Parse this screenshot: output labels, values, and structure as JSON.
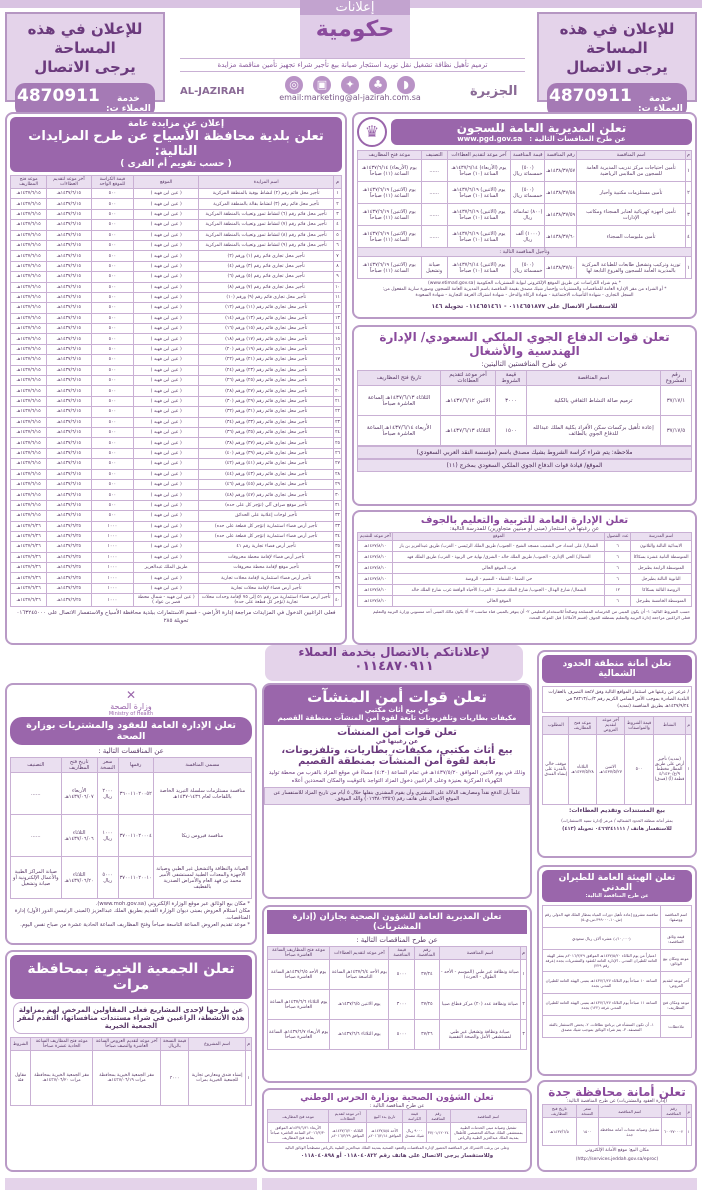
{
  "header": {
    "ad_line1": "للإعلان في هذه المساحة",
    "ad_line2": "يرجى الاتصال",
    "ad_phone_label": "خدمة العملاء ت:",
    "ad_phone": "4870911",
    "logo_top": "إعلانات",
    "logo_main": "حكومية",
    "tagline": "ترميم تأهيل نظافة تشغيل نقل توريد استئجار صيانة بيع تأجير شراء تجهيز تأمين مناقصة مزايدة",
    "email": "email:marketing@al-jazirah.com.sa",
    "brand_en": "AL-JAZIRAH",
    "brand_ar": "الجزيرة"
  },
  "asyah": {
    "kicker": "إعلان عن مزايدة عامة",
    "title": "تعلن بلدية محافظة الأسياح عن طرح المزايدات التالية:",
    "subtitle": "( حسب تقويم أم القرى )",
    "headers": [
      "م",
      "اسم المزايدة",
      "الموقع",
      "قيمة الكراسة للموقع الواحد",
      "آخر موعد لتقديم العطاءات",
      "موعد فتح المظاريف"
    ],
    "rows": [
      [
        "١",
        "تأجير محل قائم رقم (٢) لنشاط بوفية بالمنطقة المركزية",
        "( عين ابن فهيد )",
        "٥٠٠",
        "١٤٣٧/٦/١٥هـ",
        "١٤٣٧/٦/١٥هـ"
      ],
      [
        "٢",
        "تأجير محل قائم رقم (٣) لنشاط بقالة بالمنطقة المركزية",
        "( عين ابن فهيد )",
        "٥٠٠",
        "١٤٣٧/٦/١٥هـ",
        "١٤٣٧/٦/١٥هـ"
      ],
      [
        "٣",
        "تأجير محل قائم رقم (٦) لنشاط تمور وتعبيات بالمنطقة المركزية",
        "( عين ابن فهيد )",
        "٥٠٠",
        "١٤٣٧/٦/١٥هـ",
        "١٤٣٧/٦/١٥هـ"
      ],
      [
        "٤",
        "تأجير محل قائم رقم (٧) لنشاط تمور وتعبيات بالمنطقة المركزية",
        "( عين ابن فهيد )",
        "٥٠٠",
        "١٤٣٧/٦/١٥هـ",
        "١٤٣٧/٦/١٥هـ"
      ],
      [
        "٥",
        "تأجير محل قائم رقم (٨) لنشاط تمور وتعبيات بالمنطقة المركزية",
        "( عين ابن فهيد )",
        "٥٠٠",
        "١٤٣٧/٦/١٥هـ",
        "١٤٣٧/٦/١٥هـ"
      ],
      [
        "٦",
        "تأجير محل قائم رقم (٩) لنشاط تمور وتعبيات بالمنطقة المركزية",
        "( عين ابن فهيد )",
        "٥٠٠",
        "١٤٣٧/٦/١٥هـ",
        "١٤٣٧/٦/١٥هـ"
      ],
      [
        "٧",
        "تأجير محل تجاري قائم رقم (١) ورقم (٢)",
        "( عين ابن فهيد )",
        "٥٠٠",
        "١٤٣٧/٦/١٥هـ",
        "١٤٣٧/٦/١٥هـ"
      ],
      [
        "٨",
        "تأجير محل تجاري قائم رقم (٣) ورقم (٤)",
        "( عين ابن فهيد )",
        "٥٠٠",
        "١٤٣٧/٦/١٥هـ",
        "١٤٣٧/٦/١٥هـ"
      ],
      [
        "٩",
        "تأجير محل تجاري قائم رقم (٥) ورقم (٦)",
        "( عين ابن فهيد )",
        "٥٠٠",
        "١٤٣٧/٦/١٥هـ",
        "١٤٣٧/٦/١٥هـ"
      ],
      [
        "١٠",
        "تأجير محل تجاري قائم رقم (٧) ورقم (٨)",
        "( عين ابن فهيد )",
        "٥٠٠",
        "١٤٣٧/٦/١٥هـ",
        "١٤٣٧/٦/١٥هـ"
      ],
      [
        "١١",
        "تأجير محل تجاري قائم رقم (٩) ورقم (١٠)",
        "( عين ابن فهيد )",
        "٥٠٠",
        "١٤٣٧/٦/١٥هـ",
        "١٤٣٧/٦/١٥هـ"
      ],
      [
        "١٢",
        "تأجير محل تجاري قائم رقم (١١) ورقم (١٢)",
        "( عين ابن فهيد )",
        "٥٠٠",
        "١٤٣٧/٦/١٥هـ",
        "١٤٣٧/٦/١٥هـ"
      ],
      [
        "١٣",
        "تأجير محل تجاري قائم رقم (١٣) ورقم (١٤)",
        "( عين ابن فهيد )",
        "٥٠٠",
        "١٤٣٧/٦/١٥هـ",
        "١٤٣٧/٦/١٥هـ"
      ],
      [
        "١٤",
        "تأجير محل تجاري قائم رقم (١٥) ورقم (١٦)",
        "( عين ابن فهيد )",
        "٥٠٠",
        "١٤٣٧/٦/١٥هـ",
        "١٤٣٧/٦/١٥هـ"
      ],
      [
        "١٥",
        "تأجير محل تجاري قائم رقم (١٧) ورقم (١٨)",
        "( عين ابن فهيد )",
        "٥٠٠",
        "١٤٣٧/٦/١٥هـ",
        "١٤٣٧/٦/١٥هـ"
      ],
      [
        "١٦",
        "تأجير محل تجاري قائم رقم (١٩) ورقم (٢٠)",
        "( عين ابن فهيد )",
        "٥٠٠",
        "١٤٣٧/٦/١٥هـ",
        "١٤٣٧/٦/١٥هـ"
      ],
      [
        "١٧",
        "تأجير محل تجاري قائم رقم (٢١) ورقم (٢٢)",
        "( عين ابن فهيد )",
        "٥٠٠",
        "١٤٣٧/٦/١٥هـ",
        "١٤٣٧/٦/١٥هـ"
      ],
      [
        "١٨",
        "تأجير محل تجاري قائم رقم (٢٣) ورقم (٢٤)",
        "( عين ابن فهيد )",
        "٥٠٠",
        "١٤٣٧/٦/١٥هـ",
        "١٤٣٧/٦/١٥هـ"
      ],
      [
        "١٩",
        "تأجير محل تجاري قائم رقم (٢٥) ورقم (٢٦)",
        "( عين ابن فهيد )",
        "٥٠٠",
        "١٤٣٧/٦/١٥هـ",
        "١٤٣٧/٦/١٥هـ"
      ],
      [
        "٢٠",
        "تأجير محل تجاري قائم رقم (٢٧) ورقم (٢٨)",
        "( عين ابن فهيد )",
        "٥٠٠",
        "١٤٣٧/٦/١٥هـ",
        "١٤٣٧/٦/١٥هـ"
      ],
      [
        "٢١",
        "تأجير محل تجاري قائم رقم (٢٩) ورقم (٣٠)",
        "( عين ابن فهيد )",
        "٥٠٠",
        "١٤٣٧/٦/١٥هـ",
        "١٤٣٧/٦/١٥هـ"
      ],
      [
        "٢٢",
        "تأجير محل تجاري قائم رقم (٣١) ورقم (٣٢)",
        "( عين ابن فهيد )",
        "٥٠٠",
        "١٤٣٧/٦/١٥هـ",
        "١٤٣٧/٦/١٥هـ"
      ],
      [
        "٢٣",
        "تأجير محل تجاري قائم رقم (٣٣) ورقم (٣٤)",
        "( عين ابن فهيد )",
        "٥٠٠",
        "١٤٣٧/٦/١٥هـ",
        "١٤٣٧/٦/١٥هـ"
      ],
      [
        "٢٤",
        "تأجير محل تجاري قائم رقم (٣٥) ورقم (٣٦)",
        "( عين ابن فهيد )",
        "٥٠٠",
        "١٤٣٧/٦/١٥هـ",
        "١٤٣٧/٦/١٥هـ"
      ],
      [
        "٢٥",
        "تأجير محل تجاري قائم رقم (٣٧) ورقم (٣٨)",
        "( عين ابن فهيد )",
        "٥٠٠",
        "١٤٣٧/٦/١٥هـ",
        "١٤٣٧/٦/١٥هـ"
      ],
      [
        "٢٦",
        "تأجير محل تجاري قائم رقم (٣٩) ورقم (٤٠)",
        "( عين ابن فهيد )",
        "٥٠٠",
        "١٤٣٧/٦/١٥هـ",
        "١٤٣٧/٦/١٥هـ"
      ],
      [
        "٢٧",
        "تأجير محل تجاري قائم رقم (٤١) ورقم (٤٢)",
        "( عين ابن فهيد )",
        "٥٠٠",
        "١٤٣٧/٦/١٥هـ",
        "١٤٣٧/٦/١٥هـ"
      ],
      [
        "٢٨",
        "تأجير محل تجاري قائم رقم (٤٣) ورقم (٤٤)",
        "( عين ابن فهيد )",
        "٥٠٠",
        "١٤٣٧/٦/١٥هـ",
        "١٤٣٧/٦/١٥هـ"
      ],
      [
        "٢٩",
        "تأجير محل تجاري قائم رقم (٤٥) ورقم (٤٦)",
        "( عين ابن فهيد )",
        "٥٠٠",
        "١٤٣٧/٦/١٥هـ",
        "١٤٣٧/٦/١٥هـ"
      ],
      [
        "٣٠",
        "تأجير محل تجاري قائم رقم (٤٧) ورقم (٤٨)",
        "( عين ابن فهيد )",
        "٥٠٠",
        "١٤٣٧/٦/١٥هـ",
        "١٤٣٧/٦/١٥هـ"
      ],
      [
        "٣١",
        "تأجير موقع صراف آلي (تؤجر كل على حده)",
        "( عين ابن فهيد )",
        "٥٠٠",
        "١٤٣٧/٦/١٥هـ",
        "١٤٣٧/٦/١٥هـ"
      ],
      [
        "٣٢",
        "تأجير لوحات إعلانية على الحدائق",
        "( عين ابن فهيد )",
        "٥٠٠",
        "١٤٣٧/٦/١٥هـ",
        "١٤٣٧/٦/١٥هـ"
      ],
      [
        "٣٣",
        "تأجير أرض فضاء استثمارية (تؤجر كل قطعة على حده)",
        "( عين ابن فهيد )",
        "١٠٠٠",
        "١٤٣٧/٦/٢٥هـ",
        "١٤٣٧/٦/٢٦هـ"
      ],
      [
        "٣٤",
        "تأجير أرض فضاء استثمارية (تؤجر كل قطعة على حده)",
        "( عين ابن فهيد )",
        "١٠٠٠",
        "١٤٣٧/٦/٢٥هـ",
        "١٤٣٧/٦/٢٦هـ"
      ],
      [
        "٣٥",
        "تأجير أرض فضاء تجارية رقم ٤١",
        "( عين ابن فهيد )",
        "١٠٠٠",
        "١٤٣٧/٦/٢٥هـ",
        "١٤٣٧/٦/٢٦هـ"
      ],
      [
        "٣٦",
        "تأجير أرض فضاء لإقامة محطة محروقات",
        "( عين ابن فهيد )",
        "١٠٠٠",
        "١٤٣٧/٦/٢٥هـ",
        "١٤٣٧/٦/٢٦هـ"
      ],
      [
        "٣٧",
        "تأجير موقع لإقامة محطة محروقات",
        "طريق الملك عبدالعزيز",
        "١٠٠٠",
        "١٤٣٧/٦/٢٥هـ",
        "١٤٣٧/٦/٢٦هـ"
      ],
      [
        "٣٨",
        "تأجير أرض فضاء استثمارية لإقامة محلات تجارية",
        "( عين ابن فهيد )",
        "١٠٠٠",
        "١٤٣٧/٦/٢٥هـ",
        "١٤٣٧/٦/٢٦هـ"
      ],
      [
        "٣٩",
        "تأجير أرض فضاء لإقامة محلات تجارية",
        "( عين ابن فهيد )",
        "١٠٠٠",
        "١٤٣٧/٦/٢٥هـ",
        "١٤٣٧/٦/٢٦هـ"
      ],
      [
        "٤٠",
        "تأجير أرض فضاء استثمارية من رقم ٥١ إلى ٧٥ لإقامة وحدات محلات تجارية (تؤجر كل قطعة على حده)",
        "( عين ابن فهيد - شمال محطة قصر بن عواد )",
        "١٠٠٠",
        "١٤٣٧/٦/٢٥هـ",
        "١٤٣٧/٦/٢٦هـ"
      ]
    ],
    "footer": "فعلى الراغبين الدخول في المزايدات مراجعة إدارة الأراضي - قسم الاستثمارات ببلدية محافظة الأسياح والاستفسار الاتصال على ٠١٦٣٢٤٥٠٠٠ تحويلة ٢٨٥"
  },
  "prisons": {
    "title": "تعلن المديرية العامة للسجون",
    "website": "www.pgd.gov.sa",
    "subtitle": "عن طرح المنافسات التالية :",
    "headers": [
      "م",
      "اسم المنافسة",
      "رقم المنافسة",
      "قيمة المنافسة",
      "آخر موعد لتقديم العطاءات",
      "التصنيف",
      "موعد فتح المظاريف"
    ],
    "rows": [
      [
        "١",
        "تأمين احتياجات مركز تدريب المديرية العامة للسجون من الملابس الرياضية",
        "١٤٣٨/٣٧/٥٧هـ",
        "(٥٠٠) خمسمائة ريال",
        "يوم (الأربعاء) ١٤٣٧/٦/١٤هـ الساعة (١٠) صباحاً",
        "......",
        "يوم (الأربعاء) ١٤٣٧/٦/١٤هـ الساعة (١١) صباحاً"
      ],
      [
        "٢",
        "تأمين مستلزمات مكتبية وأحبار",
        "١٤٣٨/٣٧/٥٨هـ",
        "(٥٠٠) خمسمائة ريال",
        "يوم (الاثنين) ١٤٣٧/٦/١٩هـ الساعة (١٠) صباحاً",
        "......",
        "يوم (الاثنين) ١٤٣٧/٦/١٩هـ الساعة (١١) صباحاً"
      ],
      [
        "٣",
        "تأمين أجهزة كهربائية لعنابر السجناء ومكاتب الإدارات",
        "١٤٣٨/٣٧/٥٩هـ",
        "(٨٠٠) ثمانمائة ريال",
        "يوم (الاثنين) ١٤٣٧/٦/١٩هـ الساعة (١٠) صباحاً",
        "......",
        "يوم (الاثنين) ١٤٣٧/٦/١٩هـ الساعة (١١) صباحاً"
      ],
      [
        "٤",
        "تأمين ملبوسات السجناء",
        "١٤٣٨/٣٧/٦٠هـ",
        "(١٠٠٠) ألف ريال",
        "يوم (الاثنين) ١٤٣٧/٦/١٩هـ الساعة (١٠) صباحاً",
        "......",
        "يوم (الاثنين) ١٤٣٧/٦/١٩هـ الساعة (١١) صباحاً"
      ]
    ],
    "postpone_label": "وتأجيل المنافسة التالية :",
    "postponed_row": [
      "١",
      "توريد وتركيب وتشغيل طابعات للطباعة المركزية بالمديرية العامة للسجون والفروع التابعة لها",
      "١٤٣٨/٣٧/٤٠هـ",
      "(٥٠٠) خمسمائة ريال",
      "يوم (الاثنين) ١٤٣٧/٦/١٤هـ الساعة (١٠) صباحاً",
      "صيانة وتشغيل",
      "يوم (الاثنين) ١٤٣٧/٦/١٩هـ الساعة (١١) صباحاً"
    ],
    "notes": [
      "* يتم شراء الكراسات عن طريق الموقع الإلكتروني لبوابة المشتريات الحكومية (www.etimad.gov.sa)",
      "* أو الشراء من مقر الإدارة العامة للمناقصات والمشتريات وإحضار شيك مصدق بقيمة المناقصة باسم المديرية العامة للسجون وصورة سارية المفعول من:",
      "السجل التجاري - شهادة التأمينات الاجتماعية - شهادة الزكاة والدخل - شهادة اشتراك الغرفة التجارية - شهادة السعودة"
    ],
    "contact": "للاستفسار الاتصال على ٠١١٤٦٥١٨٧٧ - ٠١١٤٦٥١٤٦١ تحويلة ١٤٦"
  },
  "airdefense": {
    "title": "تعلن قوات الدفاع الجوي الملكي السعودي/ الإدارة الهندسية والأشغال",
    "subtitle": "عن طرح المنافستين التاليتين:",
    "headers": [
      "رقم المشروع",
      "اسم المناقصة",
      "قيمة الشروط",
      "آخر موعد لتقديم العطاءات",
      "تاريخ فتح المظاريف"
    ],
    "rows": [
      [
        "٣٧/١٧/١",
        "ترميم صالة النشاط الثقافي بالكلية",
        "٣٠٠٠",
        "الاثنين ١٤٣٧/٦/١٢هـ",
        "الثلاثاء ١٤٣٧/٦/١٣هـ الساعة العاشرة صباحاً"
      ],
      [
        "٣٧/١٧/٥",
        "إعادة تأهيل بركسات سكن الأفراد بكلية الملك عبدالله للدفاع الجوي بالطائف",
        "١٥٠٠",
        "الثلاثاء ١٤٣٧/٦/١٣هـ",
        "الأربعاء ١٤٣٧/٦/١٤هـ الساعة العاشرة صباحاً"
      ]
    ],
    "note": "ملاحظة: يتم شراء كراسة الشروط بشيك مصدق باسم (مؤسسة النقد العربي السعودي)",
    "location": "الموقع/ قيادة قوات الدفاع الجوي الملكي السعودي بمخرج (١١)"
  },
  "jouf": {
    "title": "تعلن الإدارة العامة للتربية والتعليم بالجوف",
    "subtitle": "عن رغبتها في استئجار (مبنى أو مبنيين متجاورين) للمدرسة التالية:",
    "headers": [
      "اسم المدرسة",
      "عدد الفصول",
      "الموقع",
      "آخر موعد للتقديم"
    ],
    "rows": [
      [
        "الابتدائية الثالثة والثلاثون",
        "٦",
        "الشمال/ على امتداد حي الشعيب مسجد الشيخ - الجنوب/ طريق الملك الرئيسي - الغرب/ طريق عبدالعزيز بن باز",
        "١٤٣٧/٨/١٠هـ"
      ],
      [
        "المتوسطة الثانية عشرة بسكاكا",
        "٦",
        "الشمال/ الحي الإداري - الجنوب/ طريق الملك خالد - الشرق/ نهاية حي الربوة - الغرب/ طريق الملك فهد",
        "١٤٣٧/٨/١٠هـ"
      ],
      [
        "المتوسطة الرابعة بطبرجل",
        "٦",
        "قرب الموقع الحالي",
        "١٤٣٧/٨/١٠هـ"
      ],
      [
        "الثانوية الثالثة بطبرجل",
        "٦",
        "حي الصفا - الشفاء - النسيم - الروضة",
        "١٤٣٧/٨/١٠هـ"
      ],
      [
        "الروضة الثالثة بسكاكا",
        "١٢",
        "الشمال/ شارع الهذال - الجنوب/ شارع الملك فيصل - الغرب/ الأحياء الواقعة غرب شارع الملك خالد",
        "١٤٣٧/٨/١٠هـ"
      ],
      [
        "المتوسطة الخامسة بطبرجل",
        "٦",
        "الموقع الحالي",
        "١٤٣٧/٨/١٠هـ"
      ]
    ],
    "notes": [
      "حسب الشروط التالية: ١- أن يكون المبنى من الخرسانة المسلحة وصالحاً للاستخدام التعليمي ٢- أن يتوفر بالمبنى فناء مناسب ٣- ألا يكون مالك المبنى أحد منسوبي وزارة التربية والتعليم",
      "فعلى الراغبين مراجعة إدارة التربية والتعليم بمنطقة الجوف (قسم الأملاك) قبل الموعد المحدد"
    ]
  },
  "contact_strip": {
    "label": "لإعلاناتكم بالاتصال بخدمة العملاء",
    "phone": "٠١١٤٨٧٠٩١١"
  },
  "moh": {
    "logo_ar": "وزارة الصحة",
    "logo_en": "Ministry of Health",
    "title": "تعلن الإدارة العامة للعقود والمشتريات بوزارة الصحة",
    "subtitle": "عن المنافسات التالية :",
    "headers": [
      "مسمى المنافسة",
      "رقمها",
      "سعر النسخة",
      "تاريخ فتح المظاريف",
      "التصنيف"
    ],
    "rows": [
      [
        "منافسة مستلزمات سلسلة التبريد الخاصة باللقاحات لعام ١٤٣٦-١٤٣٧هـ",
        "٣٦٠٠١١٠٢٠٠٥٢",
        "٢٠٠٠ ريال",
        "الأربعاء ١٤٣٧/٠٦/٠٧هـ",
        "......"
      ],
      [
        "منافسة فيروس زيكا",
        "٣٧٠٠١١٠٢٠٠٠٤",
        "١٠٠٠ ريال",
        "الثلاثاء ١٤٣٧/٠٦/٠٦هـ",
        "......"
      ],
      [
        "الصيانة والنظافة والتشغيل غير الطبي وصيانة الأجهزة والمعدات الطبية لمستشفى الأمير محمد بن فهد العام والأمراض الصدرية بالقطيف",
        "٣٧٠٠١١٠٢٠٠١٠",
        "٥٠٠٠ ريال",
        "الثلاثاء ١٤٣٧/٠٦/٢٠هـ",
        "صيانة المراكز الطبية والأعمال الإلكترونية أو صيانة وتشغيل"
      ]
    ],
    "notes": [
      "* مكان بيع الوثائق عبر موقع الوزارة الإلكتروني (www.moh.gov.sa).",
      "مكان استلام العروض بمبنى ديوان الوزارة القديم بطريق الملك عبدالعزيز (المبنى الرئيسي الدور الأول) إدارة المناقصات.",
      "* موعد تقديم العروض الساعة التاسعة صباحاً وفتح المظاريف الساعة الحادية عشرة من صباح نفس اليوم."
    ]
  },
  "marat": {
    "title": "تعلن الجمعية الخيرية بمحافظة مرات",
    "intro": "عن طرحها لإحدى المشاريع فعلى المقاولين المرخص لهم بمزاولة هذه الأنشطة، الراغبين في شراء مستندات منافساتها، التقدم لمقر الجمعية الخيرية",
    "headers": [
      "م",
      "اسم المشروع",
      "قيمة النسخة بالريال",
      "آخر موعد لتقديم العروض الساعة العاشرة والنصف صباحاً",
      "موعد فتح المظاريف الساعة الحادية عشرة صباحاً",
      "الشروط"
    ],
    "rows": [
      [
        "١",
        "إنشاء فندق ومعارض تجارية للجمعية الخيرية بمرات",
        "٣٠٠٠",
        "مقر الجمعية الخيرية بمحافظة مرات ١٤٣٧/٠٦/١٩هـ",
        "مقر الجمعية الخيرية بمحافظة مرات ١٤٣٧/٠٦/٢٠هـ",
        "مقاول فئة"
      ]
    ]
  },
  "fss": {
    "title": "تعلن قوات أمن المنشآت",
    "sub1": "عن بيع أثاث مكتبي",
    "sub2": "مكيفات بطاريات وتلفزيونات تابعة لقوة أمن المنشآت بمنطقة القصيم",
    "body_title": "تعلن قوات أمن المنشآت",
    "body_intro": "عن رغبتها في",
    "body_big1": "بيع أثاث مكتبي، مكيفات، بطاريات، وتلفزيونات،",
    "body_big2": "تابعة لقوة أمن المنشآت بمنطقة القصيم",
    "body_text": "وذلك في يوم الاثنين الموافق ١٤٣٧/٥/٢٠هـ في تمام الساعة (٤:٣٠) مساءً في موقع المزاد بالقرب من محطة توليد الكهرباء المركزية بعنيزة وعلى الراغبين دخول المزاد التواجد بالتوقيت والمكان المحددين أعلاه",
    "footer": "علماً بأن الدفع نقداً ومصاريف الدلالة على المشتري وأن يقوم المشتري بنقلها خلال ٥ أيام من تاريخ المزاد للاستفسار عن الموقع الاتصال على هاتف رقم (٠١٦٣٨٠٢٣٥٦) والله الموفق."
  },
  "jazan": {
    "title": "تعلن المديرية العامة للشؤون الصحية بجازان (إدارة المشتريات)",
    "subtitle": "عن طرح المناقصات التالية :",
    "headers": [
      "م",
      "اسم المناقصة",
      "رقم المناقصة",
      "قيمة المناقصة",
      "آخر موعد لتقديم العطاءات",
      "موعد فتح المظاريف الساعة العاشرة صباحاً"
    ],
    "rows": [
      [
        "١",
        "صيانة ونظافة غير طبي (الموسم - الأحد - الطوال - الحرث)",
        "٣٧/٢٤",
        "٥٠٠٠",
        "يوم الأحد ١٤٣٧/٦/٤هـ الساعة التاسعة صباحاً",
        "يوم الأحد ١٤٣٧/٦/٥هـ الساعة العاشرة صباحاً"
      ],
      [
        "٢",
        "صيانة ونظافة عدد (٢٠) مركز قطاع صبيا",
        "٣٧/٢٥",
        "٣٠٠٠",
        "يوم الاثنين ١٤٣٧/٦/٥هـ",
        "يوم الثلاثاء ١٤٣٧/٦/٦هـ الساعة العاشرة صباحاً"
      ],
      [
        "٣",
        "صيانة ونظافة وتشغيل غير طبي لمستشفى الأمل والصحة النفسية",
        "٣٧/٢٦",
        "٥٠٠٠",
        "يوم الثلاثاء ١٤٣٧/٦/٦هـ",
        "يوم الأربعاء ١٤٣٧/٦/٧هـ الساعة العاشرة صباحاً"
      ]
    ]
  },
  "ng": {
    "title": "تعلن الشؤون الصحية بوزارة الحرس الوطني",
    "subtitle": "عن طرح المناقصة التالية :",
    "headers": [
      "اسم المناقصة",
      "رقم المناقصة",
      "قيمة الكراسة",
      "تاريخ بدء البيع",
      "آخر موعد لتقديم العطاءات",
      "موعد فتح المظاريف"
    ],
    "rows": [
      [
        "تشغيل وصيانة مبنى الخدمات الطبية بمستشفى الملك عبدالله التخصصي للأطفال بمدينة الملك عبدالعزيز الطبية والرياض",
        "٣٧/٠١/١٢٠٢٤",
        "٩٠٠٠ ريال شيك مصدق",
        "الأحد ١٤٣٧/٥/٥هـ الموافق ٢٠١٦/٢/١٤م",
        "الثلاثاء ١٤٣٧/٦/٢٠هـ الموافق ٢٠١٦/٣/٢٩م",
        "الأربعاء ١٤٣٧/٦/٢١هـ الموافق ٢٠١٦/٣/٣٠م الساعة العاشرة صباحاً بقاعة فتح المظاريف"
      ]
    ],
    "notes": "وعلى من يرغب الاشتراك في المناقصة الحضور لإدارة المناقصات والعقود الصحية بمدينة الملك عبدالعزيز الطبية بالرياض مصطحباً الوثائق التالية",
    "contact": "وللاستفسار يرجى الاتصال على هاتف رقم ٠١١٨٠٤٠٨٢٢ أو ٠١١٨٠٤٠٨٩٨"
  },
  "northern": {
    "title": "تعلن أمانة منطقة الحدود الشمالية",
    "intro": "/ عرعر عن رغبتها في استثمار المواقع التالية وفق لائحة التصرف بالعقارات البلدية الصادرة بموجب الأمر السامي الكريم رقم ٣/ب/٣٨٣١٣ في ١٤٢٧/٩/٢٤هـ بطريق المنافسة (تمديد)",
    "headers": [
      "م",
      "النشاط",
      "قيمة الشروط والمواصفات",
      "آخر موعد لتقديم العروض",
      "موعد فتح المظاريف",
      "المطلوب"
    ],
    "rows": [
      [
        "١",
        "(تمديد) تأجير أرض على طريق المطار مخطط ٩/ع/٤/١٤٣٠ قطعة (أ) (فندق)",
        "٥٠٠",
        "الاثنين ١٤٣٧/٥/٢٧هـ",
        "الثلاثاء ١٤٣٧/٥/٢٨هـ",
        "موقف خالي بالقدرة على إنشاء الفندق"
      ]
    ],
    "sale": "بيع المستندات وتقديم العطاءات:",
    "sale_place": "بمقر أمانة منطقة الحدود الشمالية / عرعر (إدارة تنمية الاستثمارات)",
    "contact": "للاستفسار هاتف / ٠٤٦٦٢٤١١١١ تحويلة (٤١٣)"
  },
  "gaca": {
    "title": "تعلن الهيئة العامة للطيران المدني",
    "subtitle": "عن طرح المناقصة التالية:",
    "rows": [
      [
        "اسم المناقصة ووصفها:",
        "منافسة مشروع إعادة تأهيل دورات المياه بمطار الملك فهد الدولي رقم (ش-١٠-٣٩٩٠٠٠-س-ي-٥)"
      ],
      [
        "قيمة وثائق المناقصة:",
        "(١٠,٠٠٠/-) عشرة آلاف ريال سعودي"
      ],
      [
        "موعد ومكان بيع الوثائق:",
        "اعتباراً من يوم الثلاثاء ١٤٣٧/٥/٢٠هـ الموافق ٢٠١٦/٣/٢٩م بمقر الهيئة العامة للطيران المدني - الإدارة العامة للعقود والمشتريات بجدة (غرفة رقم ٢٢٩)"
      ],
      [
        "آخر موعد لتقديم العروض:",
        "الساعة ١٠ صباحاً يوم الثلاثاء ١٤٣٧/٦/٢٧هـ بمبنى الهيئة العامة للطيران المدني بجدة"
      ],
      [
        "موعد ومكان فتح المظاريف:",
        "الساعة ١١ صباحاً يوم الثلاثاء ١٤٣٧/٦/٢٧هـ بمبنى الهيئة العامة للطيران المدني غرفة (١٢٢) بجدة"
      ],
      [
        "ملاحظات:",
        "١- أن تكون المنشأة في برنامج نطاقات. ٢- يختص الاستثمار بالفئة المصنفة. ٣- يتم شراء الوثائق بموجب شيك مصدق"
      ]
    ]
  },
  "jeddah": {
    "title": "تعلن أمانة محافظة جدة",
    "subtitle": "(إدارة العقود والمشتريات) عن طرح المناقصة التالية:",
    "headers": [
      "م",
      "رقم المناقصة",
      "اسم المناقصة",
      "سعر النسخة",
      "تاريخ فتح المظاريف"
    ],
    "rows": [
      [
        "١",
        "٦٠٠٣٧٠٠٠٢",
        "تشغيل وصيانة معدات أمانة محافظة جدة",
        "١٥٠٠",
        "١٤٣٧/٦/٥هـ"
      ]
    ],
    "sale": "مكان البيع: موقع الأمانة الإلكتروني",
    "url": "(http://services.jeddah.gov.sa/eproc)"
  },
  "colors": {
    "accent": "#9a66ab",
    "light": "#e4d3ea",
    "border": "#b99ac6"
  }
}
